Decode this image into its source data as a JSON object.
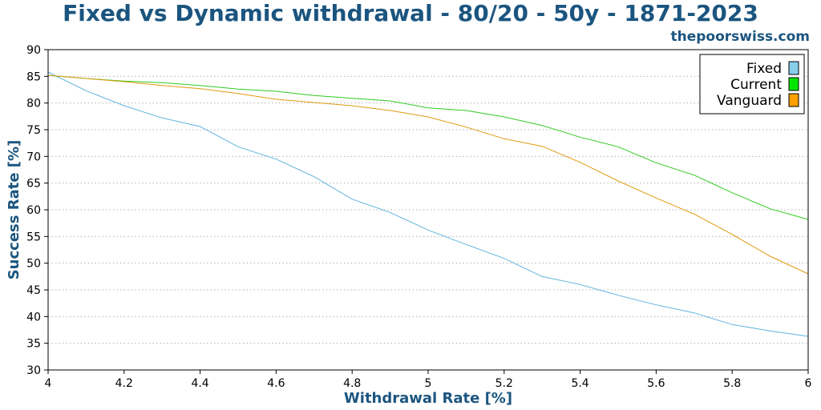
{
  "header": {
    "title": "Fixed vs Dynamic withdrawal - 80/20 - 50y - 1871-2023",
    "site": "thepoorswiss.com"
  },
  "chart_data": {
    "type": "line",
    "xlabel": "Withdrawal Rate [%]",
    "ylabel": "Success Rate [%]",
    "xlim": [
      4,
      6
    ],
    "ylim": [
      30,
      90
    ],
    "xticks": [
      4,
      4.2,
      4.4,
      4.6,
      4.8,
      5,
      5.2,
      5.4,
      5.6,
      5.8,
      6
    ],
    "xtick_labels": [
      "4",
      "4.2",
      "4.4",
      "4.6",
      "4.8",
      "5",
      "5.2",
      "5.4",
      "5.6",
      "5.8",
      "6"
    ],
    "yticks": [
      30,
      35,
      40,
      45,
      50,
      55,
      60,
      65,
      70,
      75,
      80,
      85,
      90
    ],
    "ytick_labels": [
      "30",
      "35",
      "40",
      "45",
      "50",
      "55",
      "60",
      "65",
      "70",
      "75",
      "80",
      "85",
      "90"
    ],
    "grid": true,
    "legend_position": "top-right",
    "x": [
      4.0,
      4.1,
      4.2,
      4.3,
      4.4,
      4.5,
      4.6,
      4.7,
      4.8,
      4.9,
      5.0,
      5.1,
      5.2,
      5.3,
      5.4,
      5.5,
      5.6,
      5.7,
      5.8,
      5.9,
      6.0
    ],
    "series": [
      {
        "name": "Fixed",
        "color": "#5fb4df",
        "legend_color": "#87ceeb",
        "values": [
          85.8,
          82.3,
          79.5,
          77.2,
          75.6,
          71.8,
          69.5,
          66.2,
          62.0,
          59.5,
          56.2,
          53.5,
          50.9,
          47.5,
          46.0,
          44.0,
          42.2,
          40.7,
          38.5,
          37.3,
          36.3
        ]
      },
      {
        "name": "Current",
        "color": "#2ecc1f",
        "legend_color": "#00e600",
        "values": [
          85.2,
          84.6,
          84.1,
          83.8,
          83.3,
          82.6,
          82.2,
          81.4,
          80.9,
          80.4,
          79.1,
          78.6,
          77.4,
          75.8,
          73.6,
          71.8,
          68.8,
          66.5,
          63.2,
          60.2,
          58.2
        ]
      },
      {
        "name": "Vanguard",
        "color": "#e09a0e",
        "legend_color": "#ff9f00",
        "values": [
          85.2,
          84.6,
          84.0,
          83.3,
          82.7,
          81.8,
          80.7,
          80.1,
          79.5,
          78.6,
          77.4,
          75.5,
          73.3,
          71.9,
          68.9,
          65.4,
          62.2,
          59.2,
          55.4,
          51.3,
          48.0
        ]
      }
    ]
  }
}
